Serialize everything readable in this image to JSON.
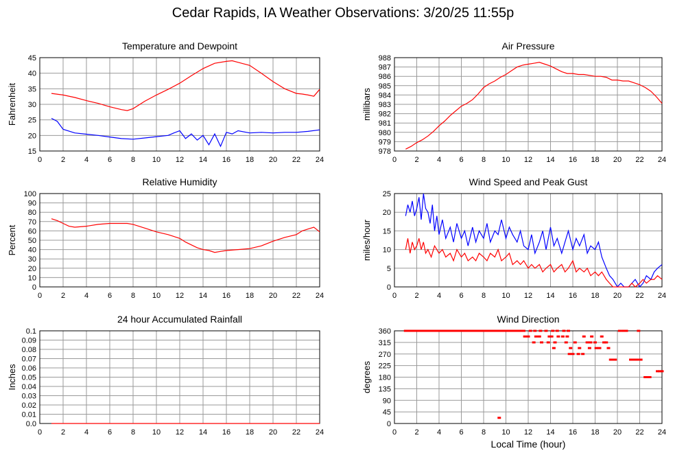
{
  "page": {
    "title": "Cedar Rapids, IA Weather Observations: 3/20/25 11:55p",
    "bottom_xlabel": "Local Time (hour)"
  },
  "colors": {
    "red": "#ff0000",
    "blue": "#0000ff",
    "grid": "#999999",
    "axis": "#000000"
  },
  "chart_data": [
    {
      "type": "line",
      "title": "Temperature and Dewpoint",
      "ylabel": "Fahrenheit",
      "xlabel": "",
      "xlim": [
        0,
        24
      ],
      "ylim": [
        15,
        45
      ],
      "xticks": [
        0,
        2,
        4,
        6,
        8,
        10,
        12,
        14,
        16,
        18,
        20,
        22,
        24
      ],
      "yticks": [
        15,
        20,
        25,
        30,
        35,
        40,
        45
      ],
      "series": [
        {
          "color": "#ff0000",
          "style": "line",
          "x": [
            1,
            2,
            3,
            4,
            5,
            6,
            7,
            7.5,
            8,
            9,
            10,
            11,
            12,
            13,
            14,
            15,
            16,
            16.5,
            17,
            18,
            19,
            20,
            21,
            22,
            22.5,
            23,
            23.5,
            24
          ],
          "y": [
            33.5,
            33,
            32.2,
            31.2,
            30.3,
            29.2,
            28.3,
            28,
            28.6,
            31,
            33,
            34.8,
            36.8,
            39.2,
            41.5,
            43.2,
            43.8,
            44,
            43.5,
            42.5,
            40,
            37.3,
            35,
            33.5,
            33.3,
            33,
            32.6,
            34.8
          ]
        },
        {
          "color": "#0000ff",
          "style": "line",
          "x": [
            1,
            1.5,
            2,
            3,
            4,
            5,
            6,
            7,
            8,
            9,
            10,
            11,
            11.5,
            12,
            12.5,
            13,
            13.5,
            14,
            14.5,
            15,
            15.5,
            16,
            16.5,
            17,
            18,
            19,
            20,
            21,
            22,
            23,
            24
          ],
          "y": [
            25.5,
            24.5,
            22,
            20.8,
            20.4,
            20,
            19.5,
            19,
            18.8,
            19.2,
            19.6,
            20,
            20.8,
            21.5,
            19,
            20.5,
            18.5,
            20,
            17,
            20.5,
            16.5,
            21,
            20.5,
            21.5,
            20.8,
            21,
            20.8,
            21,
            21,
            21.3,
            21.8
          ]
        }
      ]
    },
    {
      "type": "line",
      "title": "Air Pressure",
      "ylabel": "millibars",
      "xlabel": "",
      "xlim": [
        0,
        24
      ],
      "ylim": [
        978,
        988
      ],
      "xticks": [
        0,
        2,
        4,
        6,
        8,
        10,
        12,
        14,
        16,
        18,
        20,
        22,
        24
      ],
      "yticks": [
        978,
        979,
        980,
        981,
        982,
        983,
        984,
        985,
        986,
        987,
        988
      ],
      "series": [
        {
          "color": "#ff0000",
          "style": "line",
          "x": [
            1,
            1.5,
            2,
            2.5,
            3,
            3.5,
            4,
            4.5,
            5,
            5.5,
            6,
            6.5,
            7,
            7.5,
            8,
            8.5,
            9,
            9.5,
            10,
            10.5,
            11,
            11.5,
            12,
            12.5,
            13,
            13.5,
            14,
            14.5,
            15,
            15.5,
            16,
            16.5,
            17,
            17.5,
            18,
            18.5,
            19,
            19.5,
            20,
            20.5,
            21,
            21.5,
            22,
            22.5,
            23,
            23.5,
            24
          ],
          "y": [
            978.2,
            978.5,
            978.9,
            979.2,
            979.6,
            980.1,
            980.7,
            981.2,
            981.8,
            982.3,
            982.8,
            983.1,
            983.5,
            984.1,
            984.8,
            985.2,
            985.5,
            985.9,
            986.2,
            986.6,
            987,
            987.2,
            987.3,
            987.4,
            987.5,
            987.3,
            987.1,
            986.8,
            986.5,
            986.3,
            986.3,
            986.2,
            986.2,
            986.1,
            986.0,
            986.0,
            985.9,
            985.6,
            985.6,
            985.5,
            985.5,
            985.3,
            985.1,
            984.8,
            984.4,
            983.8,
            983.1
          ]
        }
      ]
    },
    {
      "type": "line",
      "title": "Relative Humidity",
      "ylabel": "Percent",
      "xlabel": "",
      "xlim": [
        0,
        24
      ],
      "ylim": [
        0,
        100
      ],
      "xticks": [
        0,
        2,
        4,
        6,
        8,
        10,
        12,
        14,
        16,
        18,
        20,
        22,
        24
      ],
      "yticks": [
        0,
        10,
        20,
        30,
        40,
        50,
        60,
        70,
        80,
        90,
        100
      ],
      "series": [
        {
          "color": "#ff0000",
          "style": "line",
          "x": [
            1,
            1.5,
            2,
            2.5,
            3,
            4,
            5,
            6,
            7,
            7.5,
            8,
            9,
            10,
            11,
            12,
            12.5,
            13,
            13.5,
            14,
            14.5,
            15,
            15.5,
            16,
            17,
            18,
            19,
            20,
            21,
            22,
            22.5,
            23,
            23.5,
            24
          ],
          "y": [
            73,
            71,
            68,
            65,
            64,
            65,
            67,
            68,
            68,
            68,
            67,
            63,
            59,
            56,
            52,
            48,
            45,
            42,
            40,
            39,
            37,
            38,
            39,
            40,
            41,
            44,
            49,
            53,
            56,
            60,
            62,
            64,
            59
          ]
        }
      ]
    },
    {
      "type": "line",
      "title": "Wind Speed and Peak Gust",
      "ylabel": "miles/hour",
      "xlabel": "",
      "xlim": [
        0,
        24
      ],
      "ylim": [
        0,
        25
      ],
      "xticks": [
        0,
        2,
        4,
        6,
        8,
        10,
        12,
        14,
        16,
        18,
        20,
        22,
        24
      ],
      "yticks": [
        0,
        5,
        10,
        15,
        20,
        25
      ],
      "series": [
        {
          "color": "#0000ff",
          "style": "line",
          "x": [
            1,
            1.2,
            1.4,
            1.6,
            1.8,
            2,
            2.2,
            2.4,
            2.6,
            2.8,
            3,
            3.2,
            3.4,
            3.6,
            3.8,
            4,
            4.3,
            4.6,
            5,
            5.3,
            5.6,
            6,
            6.3,
            6.6,
            7,
            7.3,
            7.6,
            8,
            8.3,
            8.6,
            9,
            9.3,
            9.6,
            10,
            10.3,
            10.6,
            11,
            11.3,
            11.6,
            12,
            12.3,
            12.6,
            13,
            13.3,
            13.6,
            14,
            14.3,
            14.6,
            15,
            15.3,
            15.6,
            16,
            16.3,
            16.6,
            17,
            17.3,
            17.6,
            18,
            18.3,
            18.6,
            19,
            19.3,
            19.6,
            20,
            20.3,
            20.6,
            21,
            21.3,
            21.6,
            22,
            22.3,
            22.6,
            23,
            23.3,
            23.6,
            24
          ],
          "y": [
            19,
            22,
            20,
            23,
            19,
            21,
            24,
            18,
            25,
            21,
            20,
            17,
            22,
            15,
            19,
            14,
            18,
            13,
            16,
            12,
            17,
            13,
            15,
            11,
            16,
            12,
            15,
            13,
            17,
            12,
            15,
            14,
            18,
            13,
            16,
            14,
            12,
            15,
            11,
            10,
            14,
            9,
            12,
            15,
            10,
            16,
            11,
            13,
            9,
            12,
            15,
            10,
            13,
            11,
            14,
            9,
            11,
            10,
            12,
            8,
            5,
            3,
            2,
            0,
            1,
            0,
            0,
            1,
            2,
            0,
            1,
            3,
            2,
            4,
            5,
            6
          ]
        },
        {
          "color": "#ff0000",
          "style": "line",
          "x": [
            1,
            1.2,
            1.4,
            1.6,
            1.8,
            2,
            2.2,
            2.4,
            2.6,
            2.8,
            3,
            3.3,
            3.6,
            4,
            4.3,
            4.6,
            5,
            5.3,
            5.6,
            6,
            6.3,
            6.6,
            7,
            7.3,
            7.6,
            8,
            8.3,
            8.6,
            9,
            9.3,
            9.6,
            10,
            10.3,
            10.6,
            11,
            11.3,
            11.6,
            12,
            12.3,
            12.6,
            13,
            13.3,
            13.6,
            14,
            14.3,
            14.6,
            15,
            15.3,
            15.6,
            16,
            16.3,
            16.6,
            17,
            17.3,
            17.6,
            18,
            18.3,
            18.6,
            19,
            19.3,
            19.6,
            20,
            20.3,
            20.6,
            21,
            21.3,
            21.6,
            22,
            22.3,
            22.6,
            23,
            23.3,
            23.6,
            24
          ],
          "y": [
            10,
            13,
            9,
            12,
            10,
            11,
            13,
            10,
            12,
            9,
            10,
            8,
            11,
            9,
            10,
            8,
            9,
            7,
            10,
            8,
            9,
            7,
            8,
            7,
            9,
            8,
            7,
            9,
            8,
            10,
            7,
            8,
            9,
            6,
            7,
            6,
            7,
            5,
            6,
            5,
            6,
            4,
            5,
            6,
            4,
            5,
            6,
            4,
            5,
            7,
            4,
            5,
            4,
            5,
            3,
            4,
            3,
            4,
            2,
            1,
            0,
            0,
            0,
            0,
            0,
            1,
            0,
            1,
            2,
            1,
            2,
            2,
            3,
            2
          ]
        }
      ]
    },
    {
      "type": "line",
      "title": "24 hour Accumulated Rainfall",
      "ylabel": "Inches",
      "xlabel": "",
      "xlim": [
        0,
        24
      ],
      "ylim": [
        0,
        0.1
      ],
      "xticks": [
        0,
        2,
        4,
        6,
        8,
        10,
        12,
        14,
        16,
        18,
        20,
        22,
        24
      ],
      "yticks": [
        0.0,
        0.01,
        0.02,
        0.03,
        0.04,
        0.05,
        0.06,
        0.07,
        0.08,
        0.09,
        0.1
      ],
      "ytick_labels": [
        "0.0",
        "0.01",
        "0.02",
        "0.03",
        "0.04",
        "0.05",
        "0.06",
        "0.07",
        "0.08",
        "0.09",
        "0.1"
      ],
      "series": [
        {
          "color": "#ff0000",
          "style": "line",
          "x": [
            1,
            24
          ],
          "y": [
            0,
            0
          ]
        }
      ]
    },
    {
      "type": "scatter",
      "title": "Wind Direction",
      "ylabel": "degrees",
      "xlabel": "Local Time (hour)",
      "xlim": [
        0,
        24
      ],
      "ylim": [
        0,
        360
      ],
      "xticks": [
        0,
        2,
        4,
        6,
        8,
        10,
        12,
        14,
        16,
        18,
        20,
        22,
        24
      ],
      "yticks": [
        0,
        45,
        90,
        135,
        180,
        225,
        270,
        315,
        360
      ],
      "series": [
        {
          "color": "#ff0000",
          "style": "points",
          "x": [
            1,
            1.2,
            1.4,
            1.6,
            1.8,
            2,
            2.2,
            2.4,
            2.6,
            2.8,
            3,
            3.2,
            3.4,
            3.6,
            3.8,
            4,
            4.2,
            4.4,
            4.6,
            4.8,
            5,
            5.2,
            5.4,
            5.6,
            5.8,
            6,
            6.2,
            6.4,
            6.6,
            6.8,
            7,
            7.2,
            7.4,
            7.6,
            7.8,
            8,
            8.2,
            8.4,
            8.6,
            8.8,
            9,
            9.2,
            9.4,
            9.6,
            9.8,
            10,
            10.2,
            10.4,
            10.6,
            10.8,
            11,
            11.2,
            11.4,
            11.6,
            12.2,
            12.6,
            13.1,
            13.6,
            14.2,
            14.6,
            15.2,
            15.6,
            20.2,
            20.5,
            20.8,
            21.9,
            11.7,
            12,
            12.7,
            13,
            13.9,
            14.1,
            14.7,
            15.1,
            15.5,
            17,
            17.7,
            18.6,
            12.5,
            13.2,
            13.8,
            14.4,
            15.4,
            16.2,
            17.3,
            17.6,
            18,
            18.8,
            19,
            14.3,
            15.8,
            16.6,
            17.5,
            18.1,
            18.4,
            19.2,
            15.7,
            16,
            16.5,
            16.9,
            19.4,
            19.6,
            19.8,
            21.2,
            21.4,
            21.6,
            21.8,
            22.1,
            22.5,
            22.7,
            22.9,
            23.6,
            23.8,
            24,
            9.4
          ],
          "y": [
            360,
            360,
            360,
            360,
            360,
            360,
            360,
            360,
            360,
            360,
            360,
            360,
            360,
            360,
            360,
            360,
            360,
            360,
            360,
            360,
            360,
            360,
            360,
            360,
            360,
            360,
            360,
            360,
            360,
            360,
            360,
            360,
            360,
            360,
            360,
            360,
            360,
            360,
            360,
            360,
            360,
            360,
            360,
            360,
            360,
            360,
            360,
            360,
            360,
            360,
            360,
            360,
            360,
            360,
            360,
            360,
            360,
            360,
            360,
            360,
            360,
            360,
            360,
            360,
            360,
            360,
            338,
            338,
            338,
            338,
            338,
            338,
            338,
            338,
            338,
            338,
            338,
            338,
            315,
            315,
            315,
            315,
            315,
            315,
            315,
            315,
            315,
            315,
            315,
            293,
            293,
            293,
            293,
            293,
            293,
            293,
            270,
            270,
            270,
            270,
            248,
            248,
            248,
            248,
            248,
            248,
            248,
            248,
            180,
            180,
            180,
            203,
            203,
            203,
            22
          ]
        }
      ]
    }
  ]
}
